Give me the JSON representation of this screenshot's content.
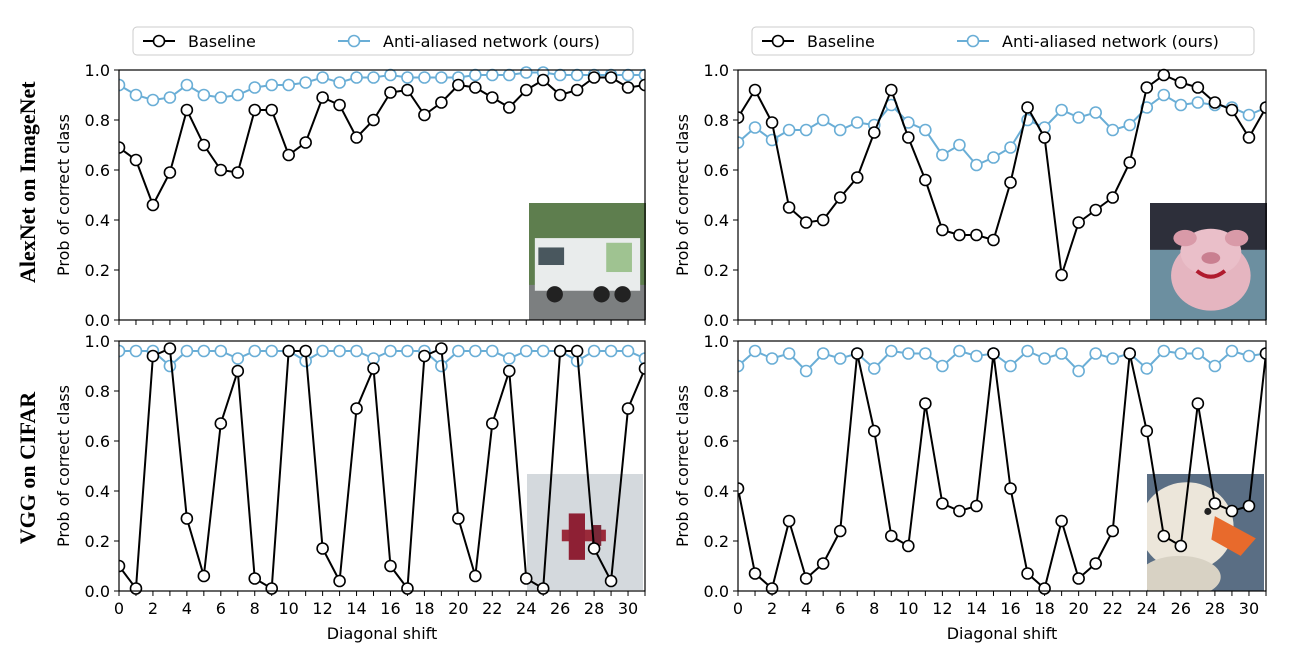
{
  "row_labels": [
    "AlexNet on ImageNet",
    "VGG on CIFAR"
  ],
  "legend": {
    "baseline": "Baseline",
    "antialiased": "Anti-aliased network (ours)"
  },
  "colors": {
    "baseline": "#000000",
    "antialiased": "#6aaed6",
    "inset_truck": "#c9ccc8",
    "inset_pig": "#6c8fa0",
    "inset_plane": "#d4d9dd",
    "inset_duck": "#5a6e84"
  },
  "chart_data": [
    {
      "type": "line",
      "panel": "top-left",
      "thumbnail": "garbage-truck",
      "xlabel": "",
      "ylabel": "Prob of correct class",
      "xlim": [
        0,
        31
      ],
      "ylim": [
        0,
        1.0
      ],
      "x": [
        0,
        1,
        2,
        3,
        4,
        5,
        6,
        7,
        8,
        9,
        10,
        11,
        12,
        13,
        14,
        15,
        16,
        17,
        18,
        19,
        20,
        21,
        22,
        23,
        24,
        25,
        26,
        27,
        28,
        29,
        30,
        31
      ],
      "series": [
        {
          "name": "Baseline",
          "values": [
            0.69,
            0.64,
            0.46,
            0.59,
            0.84,
            0.7,
            0.6,
            0.59,
            0.84,
            0.84,
            0.66,
            0.71,
            0.89,
            0.86,
            0.73,
            0.8,
            0.91,
            0.92,
            0.82,
            0.87,
            0.94,
            0.93,
            0.89,
            0.85,
            0.92,
            0.96,
            0.9,
            0.92,
            0.97,
            0.97,
            0.93,
            0.94
          ]
        },
        {
          "name": "Anti-aliased network (ours)",
          "values": [
            0.94,
            0.9,
            0.88,
            0.89,
            0.94,
            0.9,
            0.89,
            0.9,
            0.93,
            0.94,
            0.94,
            0.95,
            0.97,
            0.95,
            0.97,
            0.97,
            0.98,
            0.97,
            0.97,
            0.97,
            0.97,
            0.98,
            0.98,
            0.98,
            0.99,
            0.99,
            0.98,
            0.98,
            0.98,
            0.98,
            0.98,
            0.98
          ]
        }
      ],
      "xticks": [],
      "yticks": [
        "0.0",
        "0.2",
        "0.4",
        "0.6",
        "0.8",
        "1.0"
      ]
    },
    {
      "type": "line",
      "panel": "top-right",
      "thumbnail": "pig-toy",
      "xlabel": "",
      "ylabel": "Prob of correct class",
      "xlim": [
        0,
        31
      ],
      "ylim": [
        0,
        1.0
      ],
      "x": [
        0,
        1,
        2,
        3,
        4,
        5,
        6,
        7,
        8,
        9,
        10,
        11,
        12,
        13,
        14,
        15,
        16,
        17,
        18,
        19,
        20,
        21,
        22,
        23,
        24,
        25,
        26,
        27,
        28,
        29,
        30,
        31
      ],
      "series": [
        {
          "name": "Baseline",
          "values": [
            0.81,
            0.92,
            0.79,
            0.45,
            0.39,
            0.4,
            0.49,
            0.57,
            0.75,
            0.92,
            0.73,
            0.56,
            0.36,
            0.34,
            0.34,
            0.32,
            0.55,
            0.85,
            0.73,
            0.18,
            0.39,
            0.44,
            0.49,
            0.63,
            0.93,
            0.98,
            0.95,
            0.93,
            0.87,
            0.84,
            0.73,
            0.85
          ]
        },
        {
          "name": "Anti-aliased network (ours)",
          "values": [
            0.71,
            0.77,
            0.72,
            0.76,
            0.76,
            0.8,
            0.76,
            0.79,
            0.78,
            0.86,
            0.79,
            0.76,
            0.66,
            0.7,
            0.62,
            0.65,
            0.69,
            0.8,
            0.77,
            0.84,
            0.81,
            0.83,
            0.76,
            0.78,
            0.85,
            0.9,
            0.86,
            0.87,
            0.86,
            0.85,
            0.82,
            0.85
          ]
        }
      ],
      "xticks": [],
      "yticks": [
        "0.0",
        "0.2",
        "0.4",
        "0.6",
        "0.8",
        "1.0"
      ]
    },
    {
      "type": "line",
      "panel": "bottom-left",
      "thumbnail": "red-airplane",
      "xlabel": "Diagonal shift",
      "ylabel": "Prob of correct class",
      "xlim": [
        0,
        31
      ],
      "ylim": [
        0,
        1.0
      ],
      "x": [
        0,
        1,
        2,
        3,
        4,
        5,
        6,
        7,
        8,
        9,
        10,
        11,
        12,
        13,
        14,
        15,
        16,
        17,
        18,
        19,
        20,
        21,
        22,
        23,
        24,
        25,
        26,
        27,
        28,
        29,
        30,
        31
      ],
      "series": [
        {
          "name": "Baseline",
          "values": [
            0.1,
            0.01,
            0.94,
            0.97,
            0.29,
            0.06,
            0.67,
            0.88,
            0.05,
            0.01,
            0.96,
            0.96,
            0.17,
            0.04,
            0.73,
            0.89,
            0.1,
            0.01,
            0.94,
            0.97,
            0.29,
            0.06,
            0.67,
            0.88,
            0.05,
            0.01,
            0.96,
            0.96,
            0.17,
            0.04,
            0.73,
            0.89
          ]
        },
        {
          "name": "Anti-aliased network (ours)",
          "values": [
            0.96,
            0.96,
            0.96,
            0.9,
            0.96,
            0.96,
            0.96,
            0.93,
            0.96,
            0.96,
            0.96,
            0.92,
            0.96,
            0.96,
            0.96,
            0.93,
            0.96,
            0.96,
            0.96,
            0.9,
            0.96,
            0.96,
            0.96,
            0.93,
            0.96,
            0.96,
            0.96,
            0.92,
            0.96,
            0.96,
            0.96,
            0.93
          ]
        }
      ],
      "xticks": [
        "0",
        "2",
        "4",
        "6",
        "8",
        "10",
        "12",
        "14",
        "16",
        "18",
        "20",
        "22",
        "24",
        "26",
        "28",
        "30"
      ],
      "yticks": [
        "0.0",
        "0.2",
        "0.4",
        "0.6",
        "0.8",
        "1.0"
      ]
    },
    {
      "type": "line",
      "panel": "bottom-right",
      "thumbnail": "duck",
      "xlabel": "Diagonal shift",
      "ylabel": "Prob of correct class",
      "xlim": [
        0,
        31
      ],
      "ylim": [
        0,
        1.0
      ],
      "x": [
        0,
        1,
        2,
        3,
        4,
        5,
        6,
        7,
        8,
        9,
        10,
        11,
        12,
        13,
        14,
        15,
        16,
        17,
        18,
        19,
        20,
        21,
        22,
        23,
        24,
        25,
        26,
        27,
        28,
        29,
        30,
        31
      ],
      "series": [
        {
          "name": "Baseline",
          "values": [
            0.41,
            0.07,
            0.01,
            0.28,
            0.05,
            0.11,
            0.24,
            0.95,
            0.64,
            0.22,
            0.18,
            0.75,
            0.35,
            0.32,
            0.34,
            0.95,
            0.41,
            0.07,
            0.01,
            0.28,
            0.05,
            0.11,
            0.24,
            0.95,
            0.64,
            0.22,
            0.18,
            0.75,
            0.35,
            0.32,
            0.34,
            0.95
          ]
        },
        {
          "name": "Anti-aliased network (ours)",
          "values": [
            0.9,
            0.96,
            0.93,
            0.95,
            0.88,
            0.95,
            0.93,
            0.95,
            0.89,
            0.96,
            0.95,
            0.95,
            0.9,
            0.96,
            0.94,
            0.95,
            0.9,
            0.96,
            0.93,
            0.95,
            0.88,
            0.95,
            0.93,
            0.95,
            0.89,
            0.96,
            0.95,
            0.95,
            0.9,
            0.96,
            0.94,
            0.95
          ]
        }
      ],
      "xticks": [
        "0",
        "2",
        "4",
        "6",
        "8",
        "10",
        "12",
        "14",
        "16",
        "18",
        "20",
        "22",
        "24",
        "26",
        "28",
        "30"
      ],
      "yticks": [
        "0.0",
        "0.2",
        "0.4",
        "0.6",
        "0.8",
        "1.0"
      ]
    }
  ]
}
